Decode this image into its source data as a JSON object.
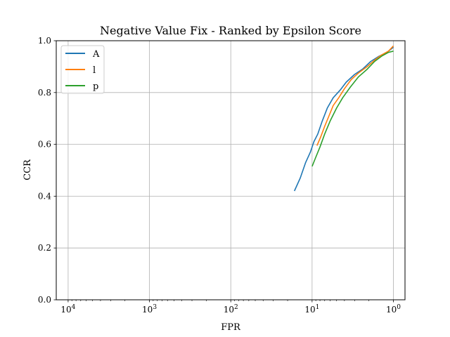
{
  "chart_data": {
    "type": "line",
    "title": "Negative Value Fix - Ranked by Epsilon Score",
    "xlabel": "FPR",
    "ylabel": "CCR",
    "x_scale": "log",
    "x_axis_inverted": true,
    "xlim": [
      14000,
      0.72
    ],
    "ylim": [
      0.0,
      1.0
    ],
    "grid": true,
    "legend_placement": "top-left",
    "x_ticks": [
      {
        "value": 10000,
        "base": "10",
        "exp": "4"
      },
      {
        "value": 1000,
        "base": "10",
        "exp": "3"
      },
      {
        "value": 100,
        "base": "10",
        "exp": "2"
      },
      {
        "value": 10,
        "base": "10",
        "exp": "1"
      },
      {
        "value": 1,
        "base": "10",
        "exp": "0"
      }
    ],
    "y_ticks": [
      "0.0",
      "0.2",
      "0.4",
      "0.6",
      "0.8",
      "1.0"
    ],
    "series": [
      {
        "name": "A",
        "color": "#1f77b4",
        "points": [
          [
            16.5,
            0.42
          ],
          [
            14,
            0.47
          ],
          [
            12,
            0.53
          ],
          [
            10.5,
            0.57
          ],
          [
            9.5,
            0.61
          ],
          [
            8.5,
            0.64
          ],
          [
            7.5,
            0.69
          ],
          [
            6.5,
            0.74
          ],
          [
            5.5,
            0.78
          ],
          [
            4.5,
            0.81
          ],
          [
            3.8,
            0.84
          ],
          [
            3.0,
            0.87
          ],
          [
            2.4,
            0.89
          ],
          [
            1.9,
            0.92
          ],
          [
            1.5,
            0.94
          ],
          [
            1.2,
            0.955
          ],
          [
            1.0,
            0.975
          ]
        ]
      },
      {
        "name": "l",
        "color": "#ff7f0e",
        "points": [
          [
            8.7,
            0.595
          ],
          [
            7.8,
            0.63
          ],
          [
            7.0,
            0.67
          ],
          [
            6.2,
            0.71
          ],
          [
            5.5,
            0.75
          ],
          [
            4.7,
            0.78
          ],
          [
            4.0,
            0.815
          ],
          [
            3.3,
            0.85
          ],
          [
            2.7,
            0.875
          ],
          [
            2.1,
            0.9
          ],
          [
            1.7,
            0.925
          ],
          [
            1.4,
            0.945
          ],
          [
            1.15,
            0.96
          ],
          [
            1.0,
            0.98
          ]
        ]
      },
      {
        "name": "p",
        "color": "#2ca02c",
        "points": [
          [
            10.0,
            0.515
          ],
          [
            9.0,
            0.55
          ],
          [
            8.0,
            0.59
          ],
          [
            7.0,
            0.64
          ],
          [
            6.0,
            0.69
          ],
          [
            5.0,
            0.74
          ],
          [
            4.2,
            0.78
          ],
          [
            3.4,
            0.82
          ],
          [
            2.7,
            0.86
          ],
          [
            2.1,
            0.89
          ],
          [
            1.7,
            0.92
          ],
          [
            1.4,
            0.94
          ],
          [
            1.15,
            0.955
          ],
          [
            1.0,
            0.96
          ]
        ]
      }
    ]
  }
}
